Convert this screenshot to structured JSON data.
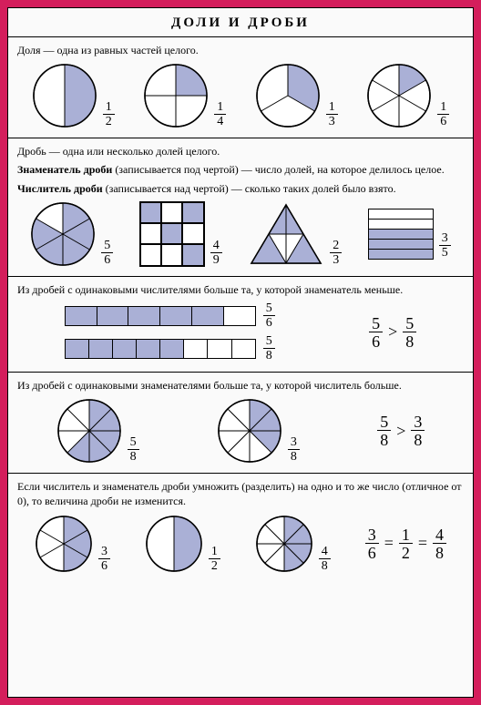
{
  "colors": {
    "fill": "#aab0d6",
    "stroke": "#000000",
    "bg": "#ffffff"
  },
  "title": "ДОЛИ И ДРОБИ",
  "s1": {
    "text": "Доля — одна из равных частей целого.",
    "items": [
      {
        "parts": 2,
        "filled": 1,
        "num": "1",
        "den": "2"
      },
      {
        "parts": 4,
        "filled": 1,
        "num": "1",
        "den": "4"
      },
      {
        "parts": 3,
        "filled": 1,
        "num": "1",
        "den": "3"
      },
      {
        "parts": 6,
        "filled": 1,
        "num": "1",
        "den": "6"
      }
    ]
  },
  "s2": {
    "t1": "Дробь — одна или несколько долей целого.",
    "t2a": "Знаменатель дроби",
    "t2b": " (записывается под чертой) — число долей, на которое делилось целое.",
    "t3a": "Числитель дроби",
    "t3b": " (записывается над чертой) — сколько таких долей было взято.",
    "pie": {
      "num": "5",
      "den": "6"
    },
    "grid": {
      "num": "4",
      "den": "9"
    },
    "tri": {
      "num": "2",
      "den": "3"
    },
    "rect": {
      "num": "3",
      "den": "5"
    }
  },
  "s3": {
    "text": "Из дробей с одинаковыми числителями больше та, у которой знаменатель меньше.",
    "bar1": {
      "total": 6,
      "filled": 5,
      "num": "5",
      "den": "6"
    },
    "bar2": {
      "total": 8,
      "filled": 5,
      "num": "5",
      "den": "8"
    },
    "cmp": {
      "ln": "5",
      "ld": "6",
      "op": ">",
      "rn": "5",
      "rd": "8"
    }
  },
  "s4": {
    "text": "Из дробей с одинаковыми знаменателями больше та, у которой числитель больше.",
    "p1": {
      "parts": 8,
      "filled": 5,
      "num": "5",
      "den": "8"
    },
    "p2": {
      "parts": 8,
      "filled": 3,
      "num": "3",
      "den": "8"
    },
    "cmp": {
      "ln": "5",
      "ld": "8",
      "op": ">",
      "rn": "3",
      "rd": "8"
    }
  },
  "s5": {
    "text": "Если числитель и знаменатель дроби умножить (разделить) на одно и то же число (отличное от 0), то величина дроби не изменится.",
    "p1": {
      "parts": 6,
      "filled": 3,
      "num": "3",
      "den": "6"
    },
    "p2": {
      "parts": 2,
      "filled": 1,
      "num": "1",
      "den": "2"
    },
    "p3": {
      "parts": 8,
      "filled": 4,
      "num": "4",
      "den": "8"
    },
    "eq": {
      "an": "3",
      "ad": "6",
      "bn": "1",
      "bd": "2",
      "cn": "4",
      "cd": "8"
    }
  }
}
